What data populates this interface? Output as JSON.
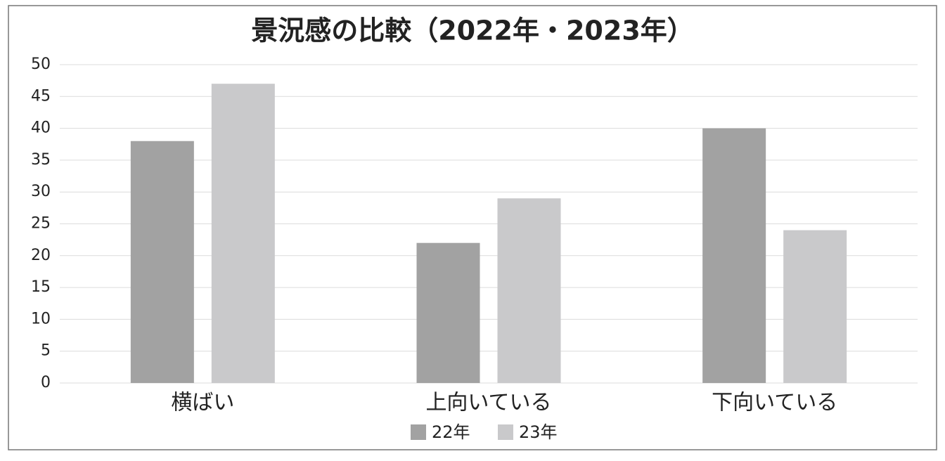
{
  "chart_data": {
    "type": "bar",
    "title": "景況感の比較（2022年・2023年）",
    "categories": [
      "横ばい",
      "上向いている",
      "下向いている"
    ],
    "series": [
      {
        "name": "22年",
        "color": "#a2a2a2",
        "values": [
          38,
          22,
          40
        ]
      },
      {
        "name": "23年",
        "color": "#c9c9cb",
        "values": [
          47,
          29,
          24
        ]
      }
    ],
    "ylim": [
      0,
      50
    ],
    "yticks": [
      0,
      5,
      10,
      15,
      20,
      25,
      30,
      35,
      40,
      45,
      50
    ],
    "grid": true,
    "legend": "bottom"
  }
}
